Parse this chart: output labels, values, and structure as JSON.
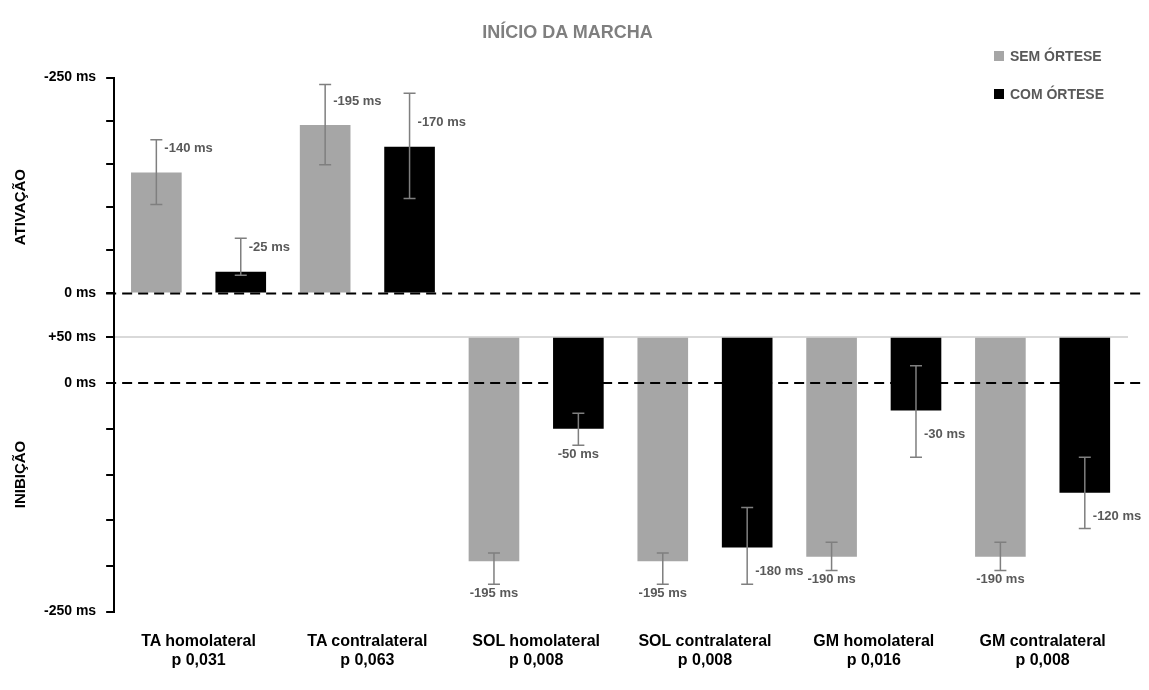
{
  "chart_data": [
    {
      "type": "bar",
      "title": "INÍCIO DA MARCHA",
      "ylabel": "ATIVAÇÃO",
      "categories": [
        null,
        null,
        null,
        null,
        null,
        null
      ],
      "series": [
        {
          "name": "SEM ÓRTESE",
          "color": "#a6a6a6",
          "values": [
            -140,
            -195,
            null,
            null,
            null,
            null
          ],
          "errors": [
            [
              -178,
              -103
            ],
            [
              -242,
              -149
            ],
            null,
            null,
            null,
            null
          ],
          "value_labels": [
            "-140 ms",
            "-195 ms",
            null,
            null,
            null,
            null
          ]
        },
        {
          "name": "COM ÓRTESE",
          "color": "#000000",
          "values": [
            -25,
            -170,
            null,
            null,
            null,
            null
          ],
          "errors": [
            [
              -64,
              -21
            ],
            [
              -232,
              -110
            ],
            null,
            null,
            null,
            null
          ],
          "value_labels": [
            "-25 ms",
            "-170 ms",
            null,
            null,
            null,
            null
          ]
        }
      ],
      "ylim": [
        50,
        -250
      ],
      "yticks": [
        {
          "value": -250,
          "label": "-250 ms"
        },
        {
          "value": -200,
          "label": null
        },
        {
          "value": -150,
          "label": null
        },
        {
          "value": -100,
          "label": null
        },
        {
          "value": -50,
          "label": null
        },
        {
          "value": 0,
          "label": "0 ms"
        },
        {
          "value": 50,
          "label": null
        }
      ],
      "ref_lines": [
        {
          "axis": "y",
          "value": 0,
          "color": "#000000",
          "line_style": "dashed"
        }
      ],
      "legend": "top right",
      "tick_labels": "y"
    },
    {
      "type": "bar",
      "ylabel": "INIBIÇÃO",
      "categories": [
        "TA homolateral\np 0,031",
        "TA contralateral\np 0,063",
        "SOL homolateral\np 0,008",
        "SOL contralateral\np 0,008",
        "GM homolateral\np 0,016",
        "GM contralateral\np 0,008"
      ],
      "series": [
        {
          "color": "#a6a6a6",
          "base": [
            null,
            null,
            50,
            50,
            50,
            50
          ],
          "values": [
            null,
            null,
            -245,
            -245,
            -240,
            -240
          ],
          "errors": [
            null,
            null,
            [
              -220,
              -186
            ],
            [
              -220,
              -186
            ],
            [
              -205,
              -174
            ],
            [
              -205,
              -174
            ]
          ],
          "value_labels": [
            null,
            null,
            "-195 ms",
            "-195 ms",
            "-190 ms",
            "-190 ms"
          ]
        },
        {
          "color": "#000000",
          "base": [
            null,
            null,
            50,
            50,
            50,
            50
          ],
          "values": [
            null,
            null,
            -100,
            -230,
            -80,
            -170
          ],
          "errors": [
            null,
            null,
            [
              -68,
              -33
            ],
            [
              -220,
              -136
            ],
            [
              -81,
              19
            ],
            [
              -159,
              -81
            ]
          ],
          "value_labels": [
            null,
            null,
            "-50 ms",
            "-180 ms",
            "-30 ms",
            "-120 ms"
          ]
        }
      ],
      "ylim": [
        -250,
        50
      ],
      "yticks": [
        {
          "value": 50,
          "label": "+50 ms"
        },
        {
          "value": 0,
          "label": "0 ms"
        },
        {
          "value": -50,
          "label": null
        },
        {
          "value": -100,
          "label": null
        },
        {
          "value": -150,
          "label": null
        },
        {
          "value": -200,
          "label": null
        },
        {
          "value": -250,
          "label": "-250 ms"
        }
      ],
      "ref_lines": [
        {
          "axis": "y",
          "value": 0,
          "color": "#000000",
          "line_style": "dashed"
        }
      ]
    }
  ]
}
